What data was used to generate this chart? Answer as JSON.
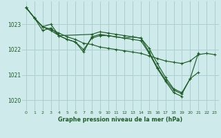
{
  "bg_color": "#ceeaea",
  "grid_color": "#aacfcf",
  "line_color": "#1e5c28",
  "title": "Graphe pression niveau de la mer (hPa)",
  "xlim": [
    -0.5,
    23.5
  ],
  "ylim": [
    1019.6,
    1023.9
  ],
  "yticks": [
    1020,
    1021,
    1022,
    1023
  ],
  "xticks": [
    0,
    1,
    2,
    3,
    4,
    5,
    6,
    7,
    8,
    9,
    10,
    11,
    12,
    13,
    14,
    15,
    16,
    17,
    18,
    19,
    20,
    21,
    22,
    23
  ],
  "series": [
    {
      "x": [
        0,
        1,
        2,
        3,
        4,
        5,
        6,
        7,
        8,
        9,
        10,
        11,
        12,
        13,
        14,
        15,
        16,
        17,
        18,
        19,
        20,
        21,
        22,
        23
      ],
      "y": [
        1023.65,
        1023.25,
        1022.9,
        1022.8,
        1022.65,
        1022.5,
        1022.4,
        1022.25,
        1022.2,
        1022.1,
        1022.05,
        1022.0,
        1021.95,
        1021.9,
        1021.85,
        1021.75,
        1021.65,
        1021.55,
        1021.5,
        1021.45,
        1021.55,
        1021.8,
        1021.85,
        1021.8
      ]
    },
    {
      "x": [
        0,
        1,
        2,
        3,
        4,
        5,
        6,
        7,
        8,
        9,
        10,
        11,
        12,
        13,
        14,
        15,
        16,
        17,
        18,
        19,
        20,
        21
      ],
      "y": [
        1023.65,
        1023.25,
        1022.9,
        1023.0,
        1022.55,
        1022.4,
        1022.3,
        1021.9,
        1022.5,
        1022.6,
        1022.55,
        1022.5,
        1022.45,
        1022.5,
        1022.45,
        1021.9,
        1021.3,
        1020.8,
        1020.4,
        1020.25,
        1020.85,
        1021.85
      ]
    },
    {
      "x": [
        0,
        1,
        2,
        3,
        4,
        5,
        6,
        7,
        8,
        9,
        10,
        11,
        12,
        13,
        14,
        15,
        16,
        17,
        18,
        19
      ],
      "y": [
        1023.65,
        1023.25,
        1022.9,
        1022.75,
        1022.55,
        1022.4,
        1022.3,
        1022.0,
        1022.45,
        1022.55,
        1022.55,
        1022.5,
        1022.45,
        1022.4,
        1022.35,
        1021.85,
        1021.25,
        1020.75,
        1020.3,
        1020.15
      ]
    },
    {
      "x": [
        0,
        1,
        2,
        3,
        4,
        8,
        9,
        10,
        11,
        12,
        13,
        14,
        15,
        16,
        17,
        18,
        19,
        20,
        21
      ],
      "y": [
        1023.65,
        1023.25,
        1022.75,
        1022.85,
        1022.55,
        1022.6,
        1022.7,
        1022.65,
        1022.6,
        1022.55,
        1022.5,
        1022.45,
        1022.05,
        1021.45,
        1020.9,
        1020.45,
        1020.3,
        1020.85,
        1021.1
      ]
    }
  ]
}
